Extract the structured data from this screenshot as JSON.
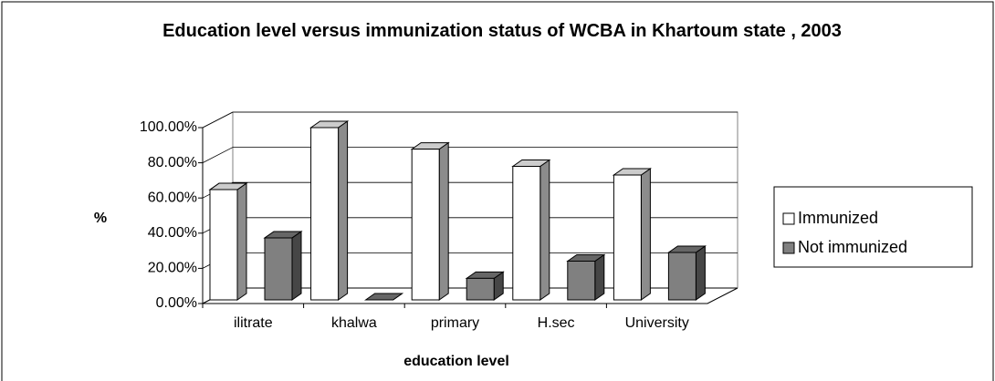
{
  "chart_data": {
    "type": "bar3d",
    "title": "Education level versus immunization status of WCBA in Khartoum state , 2003",
    "x_label": "education level",
    "y_label": "%",
    "categories": [
      "ilitrate",
      "khalwa",
      "primary",
      "H.sec",
      "University"
    ],
    "series": [
      {
        "name": "Immunized",
        "color": "#ffffff",
        "values": [
          64,
          100,
          87.5,
          77.5,
          72.5
        ]
      },
      {
        "name": "Not immunized",
        "color": "#808080",
        "values": [
          36,
          0,
          12.5,
          22.5,
          27.5
        ]
      }
    ],
    "ylim": [
      0,
      100
    ],
    "yticks": [
      {
        "value": 0,
        "label": "0.00%"
      },
      {
        "value": 20,
        "label": "20.00%"
      },
      {
        "value": 40,
        "label": "40.00%"
      },
      {
        "value": 60,
        "label": "60.00%"
      },
      {
        "value": 80,
        "label": "80.00%"
      },
      {
        "value": 100,
        "label": "100.00%"
      }
    ],
    "grid": true,
    "legend": "right"
  }
}
